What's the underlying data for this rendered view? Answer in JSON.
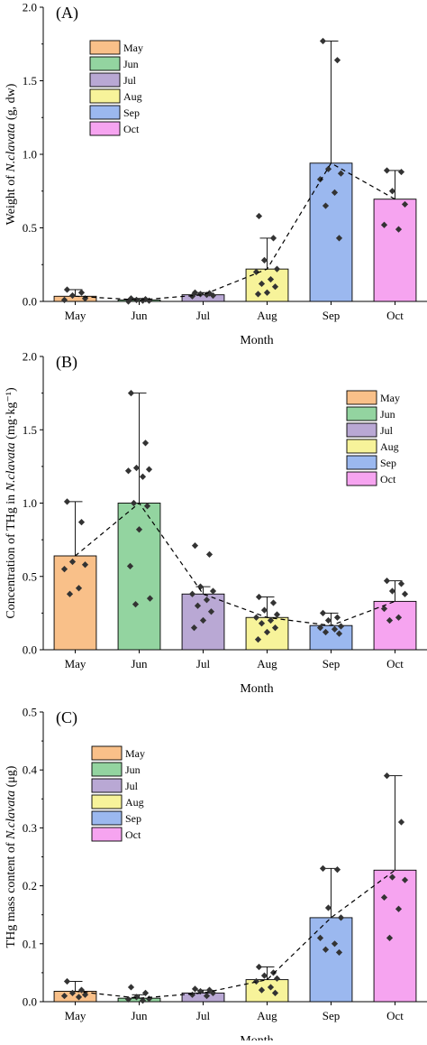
{
  "chart_data": [
    {
      "type": "bar",
      "panel_label": "(A)",
      "categories": [
        "May",
        "Jun",
        "Jul",
        "Aug",
        "Sep",
        "Oct"
      ],
      "values": [
        0.035,
        0.01,
        0.045,
        0.22,
        0.94,
        0.695
      ],
      "error_upper": [
        0.08,
        0.02,
        0.06,
        0.43,
        1.77,
        0.89
      ],
      "points": [
        [
          0.08,
          0.06,
          0.04,
          0.02,
          0.01
        ],
        [
          0.02,
          0.015,
          0.01,
          0.005,
          0.0,
          0.005
        ],
        [
          0.06,
          0.055,
          0.05,
          0.04,
          0.035,
          0.045
        ],
        [
          0.58,
          0.43,
          0.28,
          0.22,
          0.2,
          0.15,
          0.12,
          0.1,
          0.06,
          0.05
        ],
        [
          1.77,
          1.64,
          0.9,
          0.87,
          0.83,
          0.74,
          0.65,
          0.43
        ],
        [
          0.89,
          0.88,
          0.75,
          0.66,
          0.52,
          0.49
        ]
      ],
      "trend": [
        0.035,
        0.01,
        0.045,
        0.22,
        0.94,
        0.695
      ],
      "xlabel": "Month",
      "ylabel_pre": "Weight of ",
      "ylabel_italic": "N.clavata",
      "ylabel_post": " (g, dw)",
      "ylim": [
        0,
        2.0
      ],
      "yticks": [
        0,
        0.5,
        1.0,
        1.5,
        2.0
      ],
      "ytick_labels": [
        "0.0",
        "0.5",
        "1.0",
        "1.5",
        "2.0"
      ],
      "legend": [
        "May",
        "Jun",
        "Jul",
        "Aug",
        "Sep",
        "Oct"
      ],
      "legend_position": "top-left"
    },
    {
      "type": "bar",
      "panel_label": "(B)",
      "categories": [
        "May",
        "Jun",
        "Jul",
        "Aug",
        "Sep",
        "Oct"
      ],
      "values": [
        0.64,
        1.0,
        0.38,
        0.22,
        0.165,
        0.33
      ],
      "error_upper": [
        1.01,
        1.75,
        0.43,
        0.36,
        0.25,
        0.47
      ],
      "points": [
        [
          1.01,
          0.87,
          0.6,
          0.58,
          0.55,
          0.42,
          0.38
        ],
        [
          1.75,
          1.41,
          1.24,
          1.23,
          1.22,
          1.18,
          1.0,
          0.98,
          0.82,
          0.57,
          0.35,
          0.31
        ],
        [
          0.71,
          0.65,
          0.43,
          0.4,
          0.38,
          0.34,
          0.3,
          0.26,
          0.2,
          0.15
        ],
        [
          0.36,
          0.32,
          0.27,
          0.24,
          0.22,
          0.2,
          0.18,
          0.15,
          0.12,
          0.07
        ],
        [
          0.25,
          0.22,
          0.2,
          0.16,
          0.15,
          0.14,
          0.12,
          0.11
        ],
        [
          0.47,
          0.45,
          0.4,
          0.38,
          0.28,
          0.22,
          0.2
        ]
      ],
      "trend": [
        0.64,
        1.0,
        0.38,
        0.22,
        0.165,
        0.33
      ],
      "xlabel": "Month",
      "ylabel_pre": "Concentration of THg in ",
      "ylabel_italic": "N.clavata",
      "ylabel_post": " (mg·kg⁻¹)",
      "ylim": [
        0,
        2.0
      ],
      "yticks": [
        0,
        0.5,
        1.0,
        1.5,
        2.0
      ],
      "ytick_labels": [
        "0.0",
        "0.5",
        "1.0",
        "1.5",
        "2.0"
      ],
      "legend": [
        "May",
        "Jun",
        "Jul",
        "Aug",
        "Sep",
        "Oct"
      ],
      "legend_position": "top-right"
    },
    {
      "type": "bar",
      "panel_label": "(C)",
      "categories": [
        "May",
        "Jun",
        "Jul",
        "Aug",
        "Sep",
        "Oct"
      ],
      "values": [
        0.018,
        0.006,
        0.015,
        0.038,
        0.145,
        0.227
      ],
      "error_upper": [
        0.035,
        0.012,
        0.02,
        0.06,
        0.23,
        0.39
      ],
      "points": [
        [
          0.035,
          0.02,
          0.015,
          0.012,
          0.01,
          0.008
        ],
        [
          0.025,
          0.015,
          0.008,
          0.005,
          0.004,
          0.002
        ],
        [
          0.022,
          0.02,
          0.018,
          0.015,
          0.012,
          0.01
        ],
        [
          0.06,
          0.05,
          0.045,
          0.04,
          0.035,
          0.025,
          0.02,
          0.015
        ],
        [
          0.23,
          0.228,
          0.162,
          0.145,
          0.11,
          0.1,
          0.09,
          0.085
        ],
        [
          0.39,
          0.31,
          0.215,
          0.21,
          0.18,
          0.16,
          0.11
        ]
      ],
      "trend": [
        0.018,
        0.006,
        0.015,
        0.038,
        0.145,
        0.227
      ],
      "xlabel": "Month",
      "ylabel_pre": "THg mass content of ",
      "ylabel_italic": "N.clavata",
      "ylabel_post": " (μg)",
      "ylim": [
        0,
        0.5
      ],
      "yticks": [
        0,
        0.1,
        0.2,
        0.3,
        0.4,
        0.5
      ],
      "ytick_labels": [
        "0.0",
        "0.1",
        "0.2",
        "0.3",
        "0.4",
        "0.5"
      ],
      "legend": [
        "May",
        "Jun",
        "Jul",
        "Aug",
        "Sep",
        "Oct"
      ],
      "legend_position": "top-left"
    }
  ],
  "colors": {
    "May": "#f9c089",
    "Jun": "#93d4a0",
    "Jul": "#b9a8d4",
    "Aug": "#f7f39a",
    "Sep": "#9bb8ef",
    "Oct": "#f6a4f0",
    "points": "#333333",
    "trend": "#000000"
  }
}
